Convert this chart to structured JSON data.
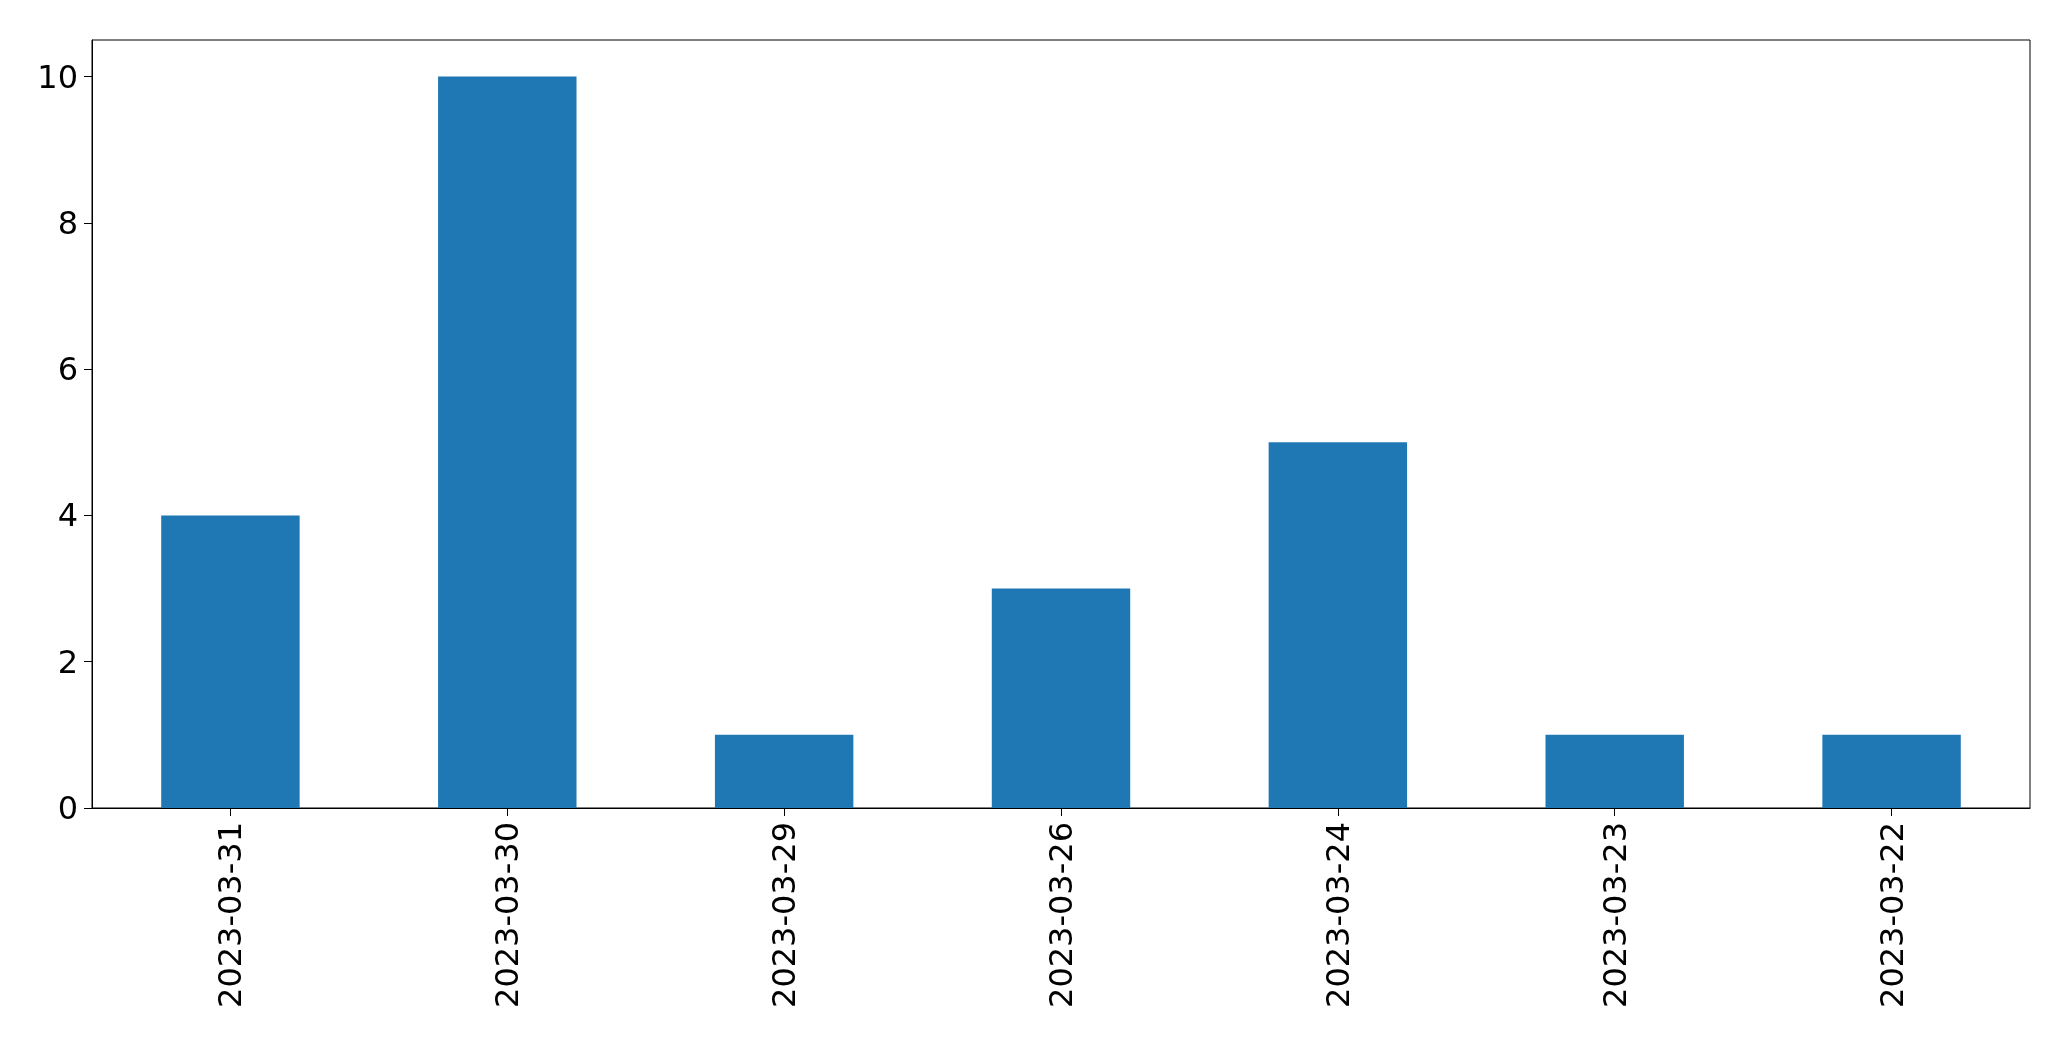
{
  "chart_data": {
    "type": "bar",
    "categories": [
      "2023-03-31",
      "2023-03-30",
      "2023-03-29",
      "2023-03-26",
      "2023-03-24",
      "2023-03-23",
      "2023-03-22"
    ],
    "values": [
      4,
      10,
      1,
      3,
      5,
      1,
      1
    ],
    "color": "#1f77b4",
    "ylim": [
      0,
      10.5
    ],
    "yticks": [
      0,
      2,
      4,
      6,
      8,
      10
    ],
    "grid": false
  }
}
